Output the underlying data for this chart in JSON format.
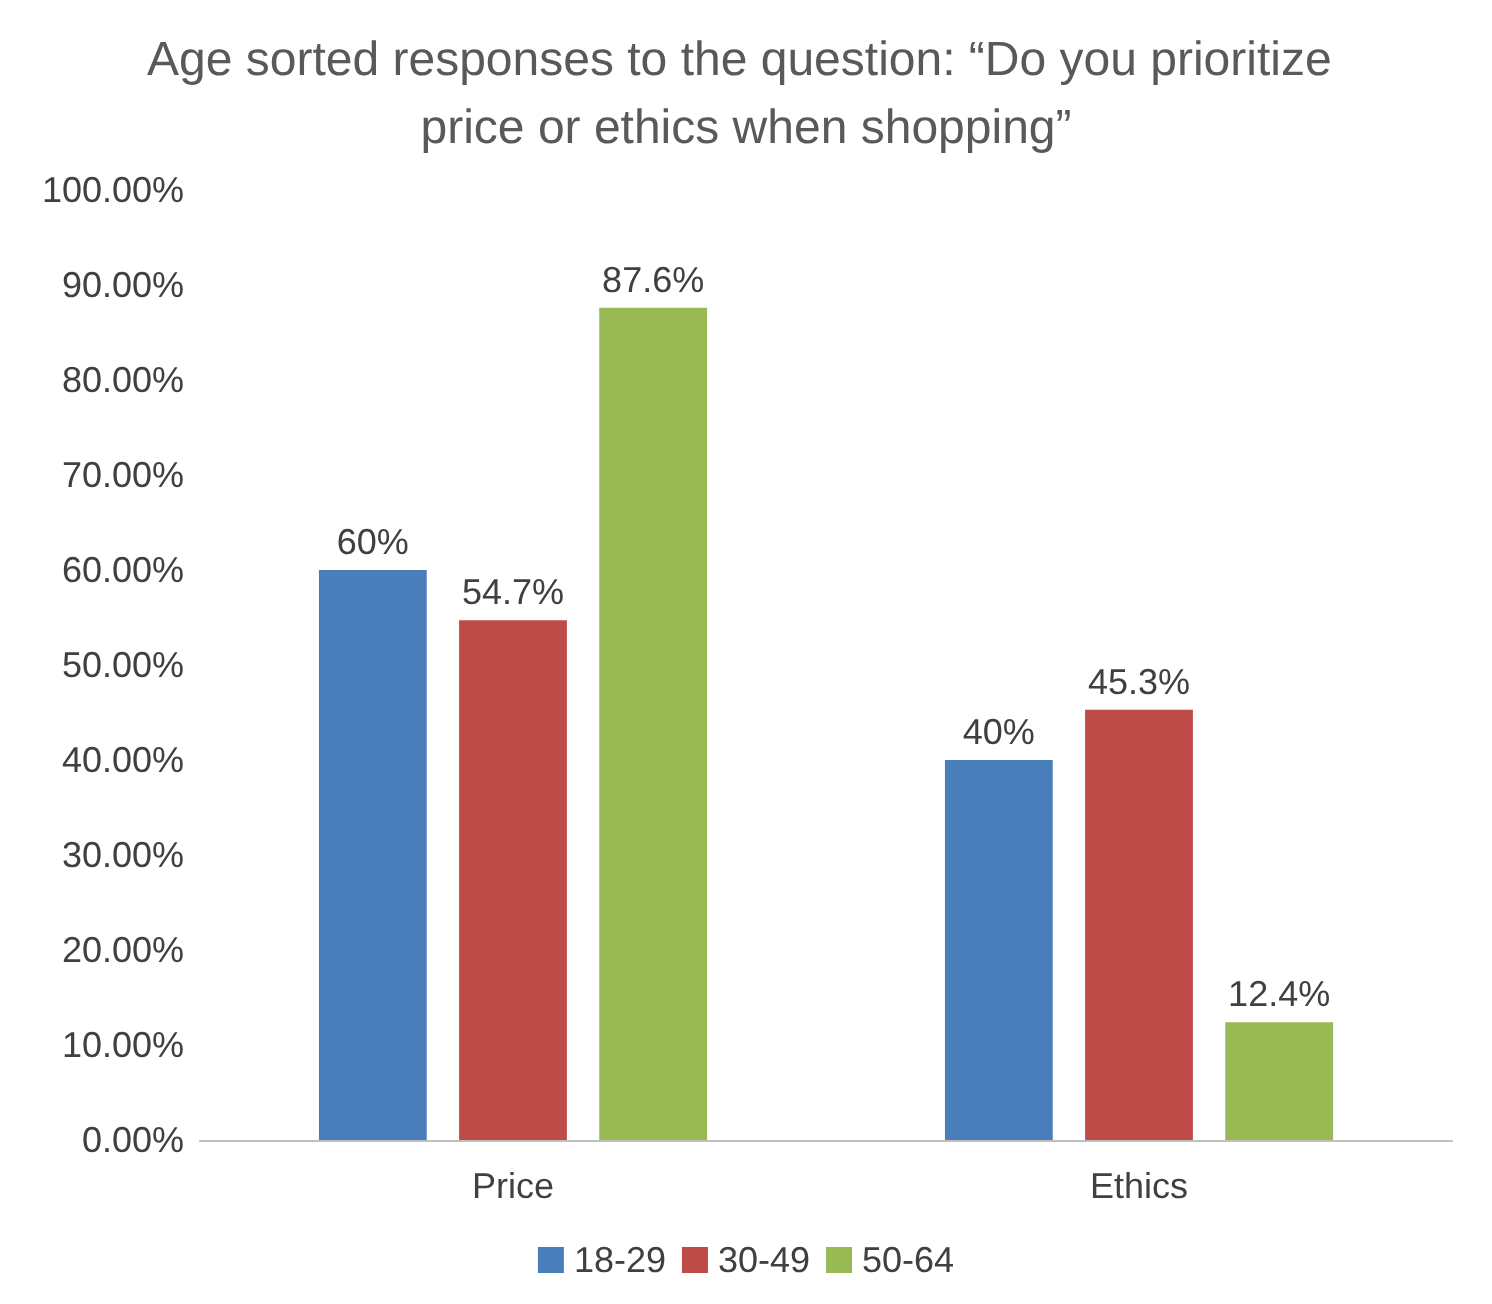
{
  "chart_data": {
    "type": "bar",
    "title": "Age sorted responses to the question: “Do you prioritize price or ethics when shopping”",
    "categories": [
      "Price",
      "Ethics"
    ],
    "series": [
      {
        "name": "18-29",
        "color": "#4a7ebb",
        "values": [
          60,
          40
        ],
        "value_labels": [
          "60%",
          "40%"
        ]
      },
      {
        "name": "30-49",
        "color": "#be4b48",
        "values": [
          54.7,
          45.3
        ],
        "value_labels": [
          "54.7%",
          "45.3%"
        ]
      },
      {
        "name": "50-64",
        "color": "#98b954",
        "values": [
          87.6,
          12.4
        ],
        "value_labels": [
          "87.6%",
          "12.4%"
        ]
      }
    ],
    "ylim": [
      0,
      100
    ],
    "yticks": [
      {
        "value": 0,
        "label": "0.00%"
      },
      {
        "value": 10,
        "label": "10.00%"
      },
      {
        "value": 20,
        "label": "20.00%"
      },
      {
        "value": 30,
        "label": "30.00%"
      },
      {
        "value": 40,
        "label": "40.00%"
      },
      {
        "value": 50,
        "label": "50.00%"
      },
      {
        "value": 60,
        "label": "60.00%"
      },
      {
        "value": 70,
        "label": "70.00%"
      },
      {
        "value": 80,
        "label": "80.00%"
      },
      {
        "value": 90,
        "label": "90.00%"
      },
      {
        "value": 100,
        "label": "100.00%"
      }
    ],
    "grid": false,
    "legend": "bottom"
  }
}
